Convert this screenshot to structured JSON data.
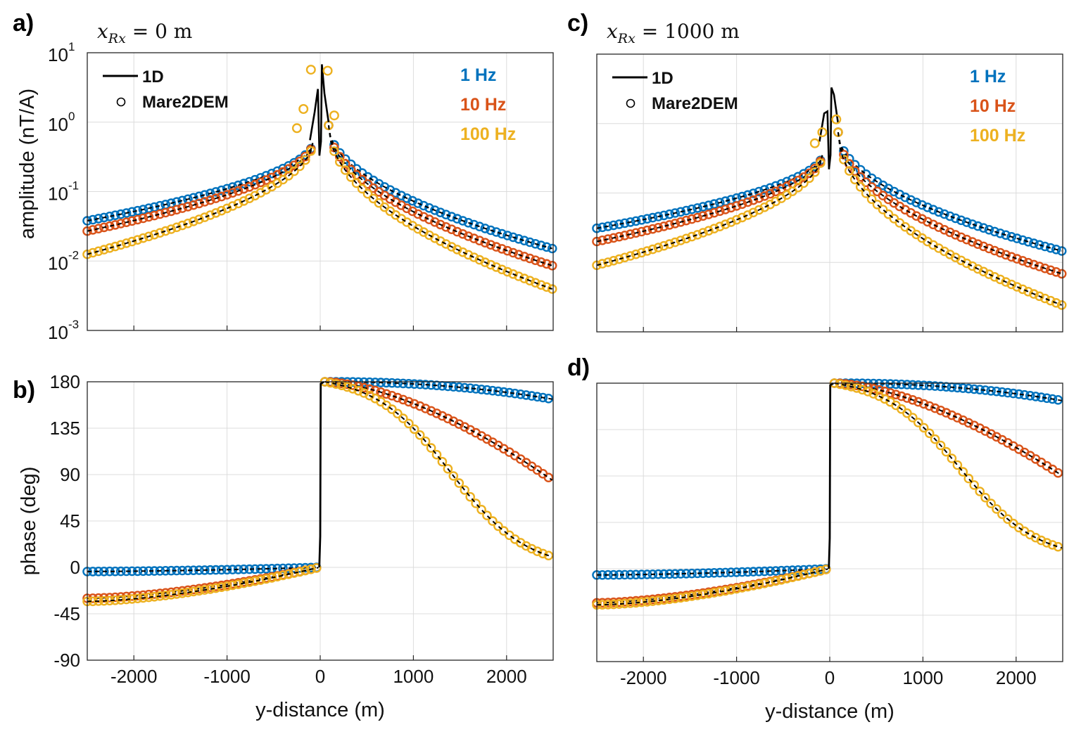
{
  "colors": {
    "f1": "#0072BD",
    "f10": "#D95319",
    "f100": "#EDB120",
    "model_1d": "#000000"
  },
  "legend": {
    "line_label": "1D",
    "marker_label": "Mare2DEM"
  },
  "frequencies": [
    "1 Hz",
    "10 Hz",
    "100 Hz"
  ],
  "axis_text": {
    "xlabel": "y-distance (m)",
    "amp_ylabel": "amplitude (nT/A)",
    "phase_ylabel": "phase (deg)",
    "x_ticks": [
      "-2000",
      "-1000",
      "0",
      "1000",
      "2000"
    ],
    "amp_tick_base": "10",
    "amp_tick_exps": [
      "1",
      "0",
      "-1",
      "-2",
      "-3"
    ],
    "phase_ticks": [
      "180",
      "135",
      "90",
      "45",
      "0",
      "-45",
      "-90"
    ]
  },
  "chart_data": [
    {
      "panel": "a)",
      "title": "x_Rx = 0 m",
      "type": "line",
      "kind": "amplitude",
      "yscale": "log",
      "xlim": [
        -2500,
        2500
      ],
      "ylim": [
        0.001,
        10
      ],
      "grid": true,
      "legend_position": "top-left",
      "xlabel": "",
      "ylabel": "amplitude (nT/A)",
      "series": [
        {
          "name": "1 Hz",
          "left": {
            "y_end": 0.038,
            "y_near": 0.5
          },
          "right": {
            "y_end": 0.015,
            "y_near": 0.9
          }
        },
        {
          "name": "10 Hz",
          "left": {
            "y_end": 0.027,
            "y_near": 0.5
          },
          "right": {
            "y_end": 0.0085,
            "y_near": 0.9
          }
        },
        {
          "name": "100 Hz",
          "left": {
            "y_end": 0.0125,
            "y_near": 0.5
          },
          "right": {
            "y_end": 0.0039,
            "y_near": 0.9
          }
        }
      ],
      "spike": {
        "peak_left": 3.0,
        "dip": 0.33,
        "peak_right": 6.8
      },
      "outlier_markers": [
        {
          "x": -100,
          "y": 5.7,
          "series": "100 Hz"
        },
        {
          "x": 80,
          "y": 5.5,
          "series": "100 Hz"
        },
        {
          "x": -180,
          "y": 1.55,
          "series": "100 Hz"
        },
        {
          "x": 150,
          "y": 1.25,
          "series": "100 Hz"
        },
        {
          "x": -250,
          "y": 0.82,
          "series": "100 Hz"
        }
      ]
    },
    {
      "panel": "b)",
      "title": "",
      "type": "line",
      "kind": "phase",
      "xlim": [
        -2500,
        2500
      ],
      "ylim": [
        -90,
        180
      ],
      "grid": true,
      "xlabel": "y-distance (m)",
      "ylabel": "phase (deg)",
      "series": [
        {
          "name": "1 Hz",
          "left_end": -4,
          "right_end": 163
        },
        {
          "name": "10 Hz",
          "left_end": -30,
          "right_end": 84
        },
        {
          "name": "100 Hz",
          "left_end": -33,
          "right_end": 10
        }
      ]
    },
    {
      "panel": "c)",
      "title": "x_Rx = 1000 m",
      "type": "line",
      "kind": "amplitude",
      "yscale": "log",
      "xlim": [
        -2500,
        2500
      ],
      "ylim": [
        0.001,
        10
      ],
      "grid": true,
      "legend_position": "top-left",
      "xlabel": "",
      "ylabel": "",
      "series": [
        {
          "name": "1 Hz",
          "left": {
            "y_end": 0.031,
            "y_near": 0.35
          },
          "right": {
            "y_end": 0.0145,
            "y_near": 0.75
          }
        },
        {
          "name": "10 Hz",
          "left": {
            "y_end": 0.02,
            "y_near": 0.35
          },
          "right": {
            "y_end": 0.0068,
            "y_near": 0.75
          }
        },
        {
          "name": "100 Hz",
          "left": {
            "y_end": 0.0091,
            "y_near": 0.35
          },
          "right": {
            "y_end": 0.0024,
            "y_near": 0.75
          }
        }
      ],
      "spike": {
        "peak_left": 1.5,
        "dip": 0.22,
        "peak_right": 3.3
      },
      "outlier_markers": [
        {
          "x": -80,
          "y": 0.75,
          "series": "100 Hz"
        },
        {
          "x": 70,
          "y": 1.15,
          "series": "100 Hz"
        },
        {
          "x": -160,
          "y": 0.52,
          "series": "100 Hz"
        }
      ]
    },
    {
      "panel": "d)",
      "title": "",
      "type": "line",
      "kind": "phase",
      "xlim": [
        -2500,
        2500
      ],
      "ylim": [
        -90,
        180
      ],
      "grid": true,
      "xlabel": "y-distance (m)",
      "ylabel": "",
      "series": [
        {
          "name": "1 Hz",
          "left_end": -6,
          "right_end": 163
        },
        {
          "name": "10 Hz",
          "left_end": -33,
          "right_end": 90
        },
        {
          "name": "100 Hz",
          "left_end": -35,
          "right_end": 20
        }
      ]
    }
  ]
}
